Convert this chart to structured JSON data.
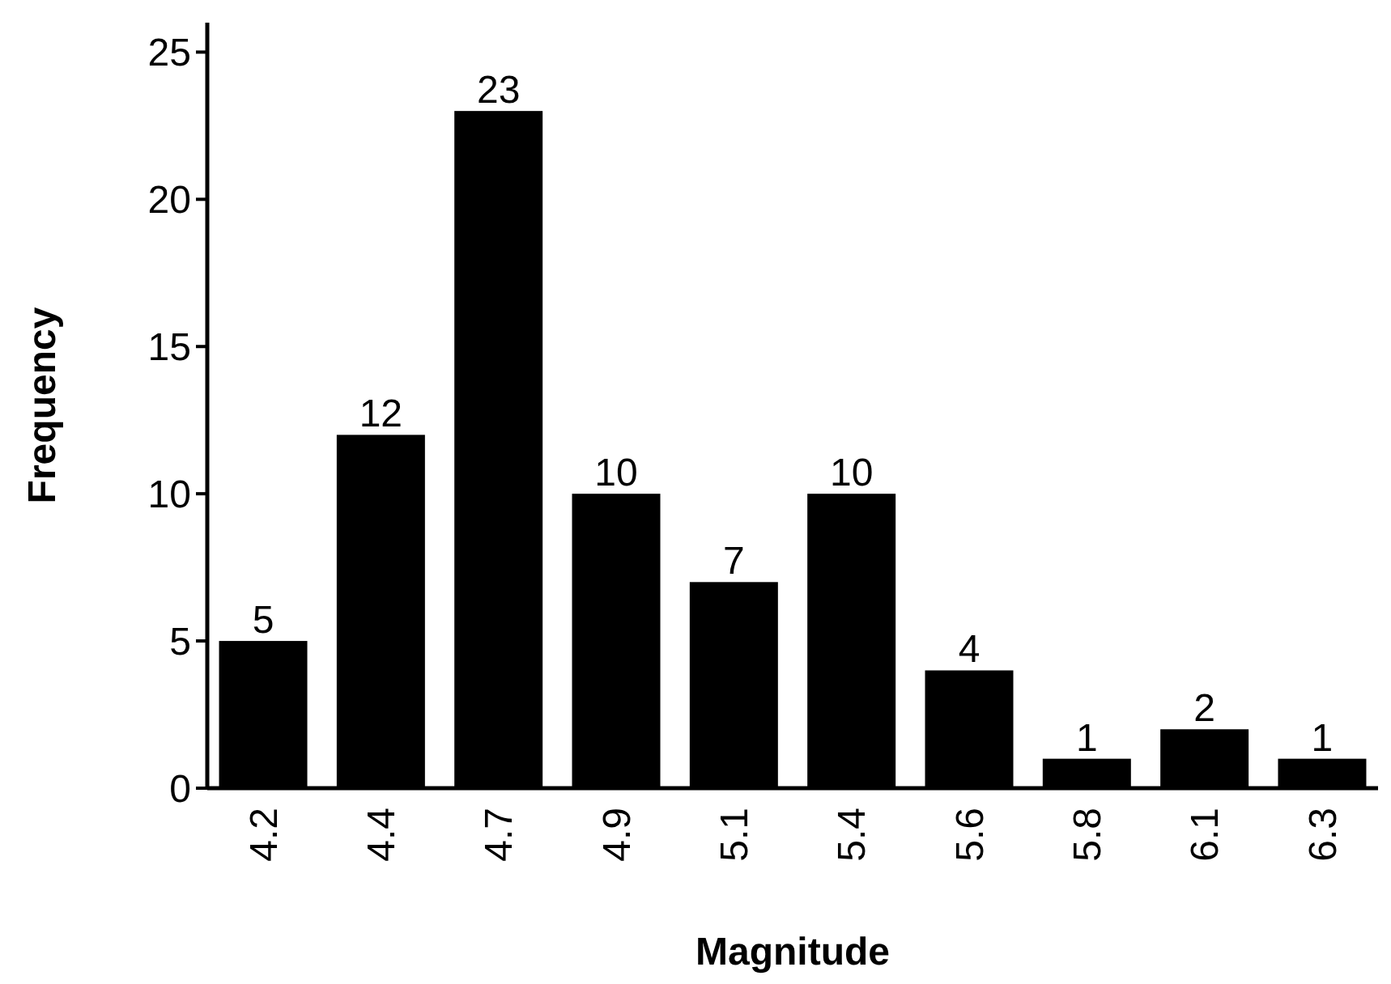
{
  "chart_data": {
    "type": "bar",
    "xlabel": "Magnitude",
    "ylabel": "Frequency",
    "categories": [
      "4.2",
      "4.4",
      "4.7",
      "4.9",
      "5.1",
      "5.4",
      "5.6",
      "5.8",
      "6.1",
      "6.3"
    ],
    "values": [
      5,
      12,
      23,
      10,
      7,
      10,
      4,
      1,
      2,
      1
    ],
    "color": "#000000",
    "ylim": [
      0,
      26
    ],
    "yticks": [
      0,
      5,
      10,
      15,
      20,
      25
    ],
    "data_labels": true,
    "grid": false
  }
}
